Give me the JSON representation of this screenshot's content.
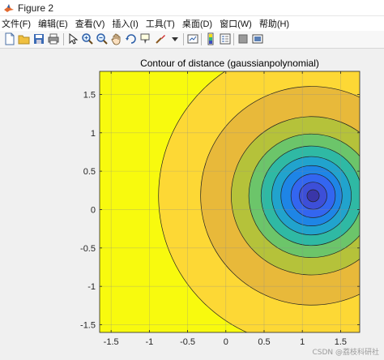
{
  "window": {
    "title": "Figure 2",
    "app_icon": "matlab-icon"
  },
  "menu": {
    "items": [
      "文件(F)",
      "编辑(E)",
      "查看(V)",
      "插入(I)",
      "工具(T)",
      "桌面(D)",
      "窗口(W)",
      "帮助(H)"
    ]
  },
  "toolbar": {
    "buttons": [
      "new-figure-icon",
      "open-file-icon",
      "save-icon",
      "print-icon",
      "select-arrow-icon",
      "zoom-in-icon",
      "zoom-out-icon",
      "pan-hand-icon",
      "rotate-3d-icon",
      "data-cursor-icon",
      "brush-icon",
      "link-plot-icon",
      "insert-colorbar-icon",
      "insert-legend-icon",
      "hide-plot-tools-icon",
      "show-plot-tools-icon"
    ]
  },
  "chart_data": {
    "type": "contour",
    "title": "Contour of distance (gaussianpolynomial)",
    "xlabel": "",
    "ylabel": "",
    "xlim": [
      -1.65,
      1.75
    ],
    "ylim": [
      -1.6,
      1.8
    ],
    "xticks": [
      "-1.5",
      "-1",
      "-0.5",
      "0",
      "0.5",
      "1",
      "1.5"
    ],
    "xtick_values": [
      -1.5,
      -1,
      -0.5,
      0,
      0.5,
      1,
      1.5
    ],
    "yticks": [
      "1.5",
      "1",
      "0.5",
      "0",
      "-0.5",
      "-1",
      "-1.5"
    ],
    "ytick_values": [
      1.5,
      1,
      0.5,
      0,
      -0.5,
      -1,
      -1.5
    ],
    "center": [
      1.12,
      0.18
    ],
    "level_radii": [
      2.0,
      1.45,
      1.05,
      0.82,
      0.66,
      0.52,
      0.4,
      0.29,
      0.18,
      0.08
    ],
    "level_colors": [
      "#f8fa0e",
      "#fdd835",
      "#e8b93a",
      "#b5c23a",
      "#6cc56a",
      "#2fb9a4",
      "#21a3cd",
      "#1e85e6",
      "#3366f0",
      "#3d4fd8",
      "#3a36a8"
    ],
    "grid": true,
    "colormap": "parula",
    "watermark": "CSDN @荔枝科研社"
  }
}
